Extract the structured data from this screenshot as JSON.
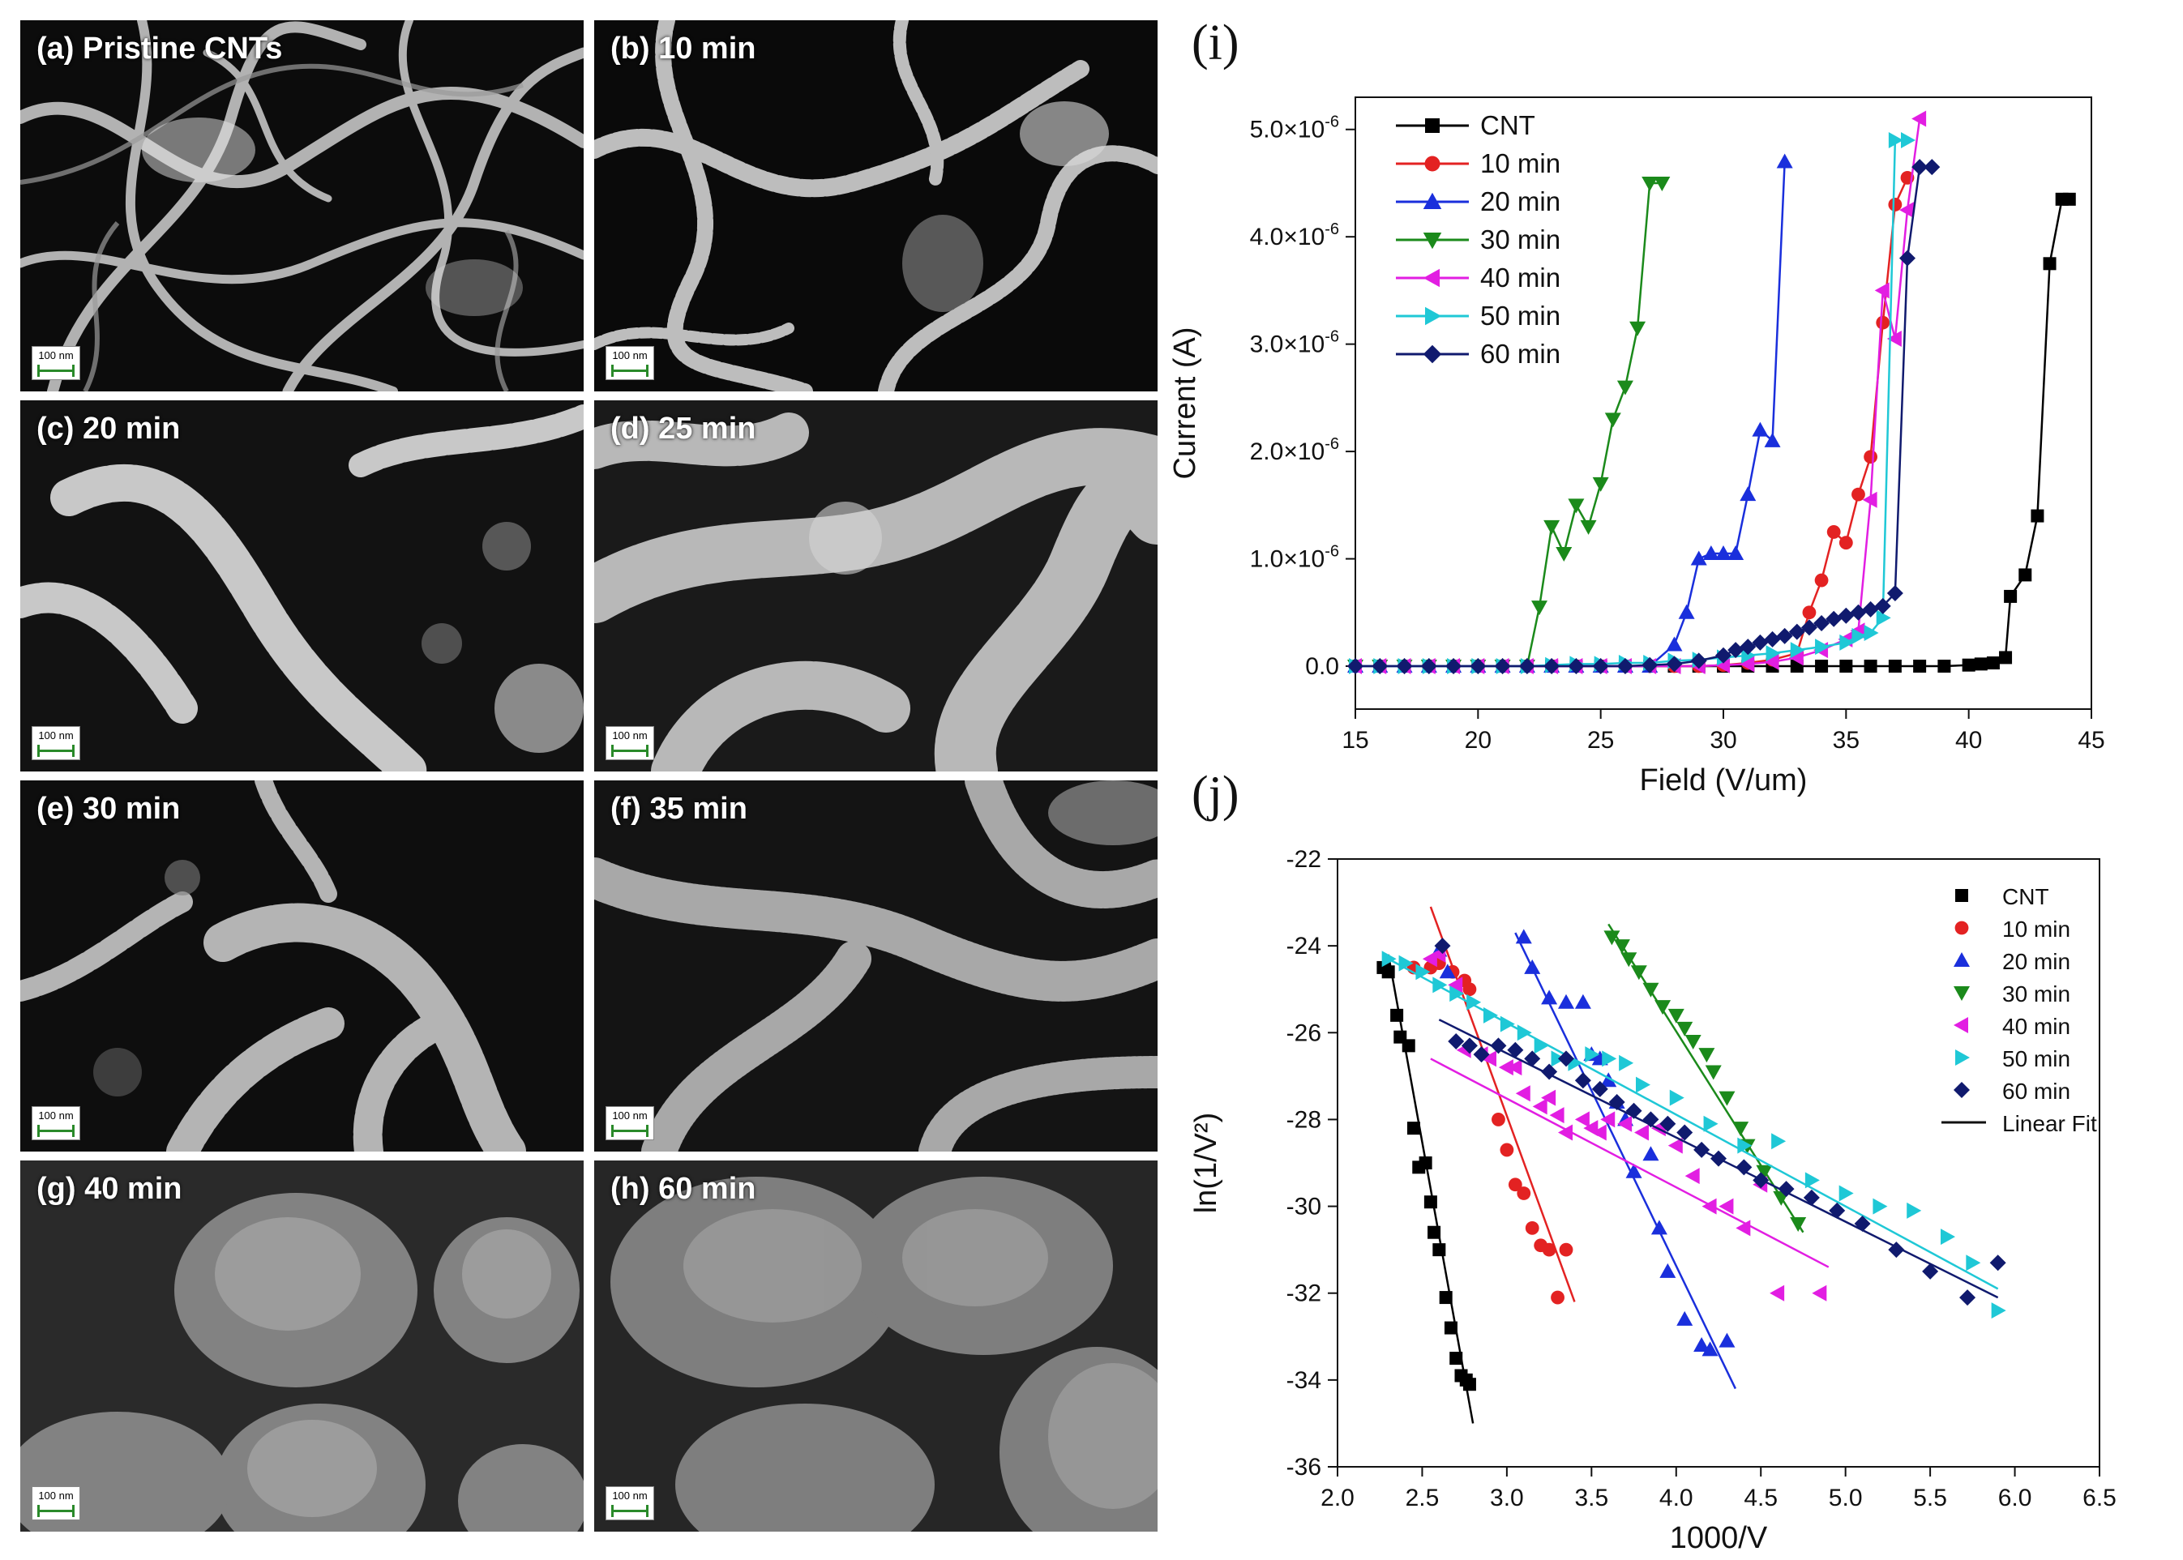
{
  "sem_panels": [
    {
      "label": "(a) Pristine CNTs",
      "scale": "100 nm"
    },
    {
      "label": "(b) 10 min",
      "scale": "100 nm"
    },
    {
      "label": "(c) 20 min",
      "scale": "100 nm"
    },
    {
      "label": "(d) 25 min",
      "scale": "100 nm"
    },
    {
      "label": "(e) 30 min",
      "scale": "100 nm"
    },
    {
      "label": "(f) 35 min",
      "scale": "100 nm"
    },
    {
      "label": "(g) 40 min",
      "scale": "100 nm"
    },
    {
      "label": "(h) 60 min",
      "scale": "100 nm"
    }
  ],
  "panel_i_letter": "(i)",
  "panel_j_letter": "(j)",
  "chart_data": [
    {
      "type": "line",
      "xlabel": "Field (V/um)",
      "ylabel": "Current (A)",
      "xlim": [
        15,
        45
      ],
      "ylim": [
        -4e-07,
        5.3e-06
      ],
      "xticks": [
        15,
        20,
        25,
        30,
        35,
        40,
        45
      ],
      "yticks": [
        0,
        1e-06,
        2e-06,
        3e-06,
        4e-06,
        5e-06
      ],
      "ytick_labels": [
        {
          "m": "0.0",
          "e": ""
        },
        {
          "m": "1.0×10",
          "e": "-6"
        },
        {
          "m": "2.0×10",
          "e": "-6"
        },
        {
          "m": "3.0×10",
          "e": "-6"
        },
        {
          "m": "4.0×10",
          "e": "-6"
        },
        {
          "m": "5.0×10",
          "e": "-6"
        }
      ],
      "legend_position": "top-left",
      "series": [
        {
          "name": "CNT",
          "color": "#000000",
          "marker": "square",
          "x": [
            15,
            16,
            17,
            18,
            19,
            20,
            21,
            22,
            23,
            24,
            25,
            26,
            27,
            28,
            29,
            30,
            31,
            32,
            33,
            34,
            35,
            36,
            37,
            38,
            39,
            40,
            40.5,
            41,
            41.5,
            41.7,
            42.3,
            42.8,
            43.3,
            43.8,
            44.1
          ],
          "y": [
            0,
            0,
            0,
            0,
            0,
            0,
            0,
            0,
            0,
            0,
            0,
            0,
            0,
            0,
            0,
            0,
            0,
            0,
            0,
            0,
            0,
            0,
            0,
            0,
            0,
            1e-08,
            2e-08,
            3e-08,
            8e-08,
            6.5e-07,
            8.5e-07,
            1.4e-06,
            3.75e-06,
            4.35e-06,
            4.35e-06
          ]
        },
        {
          "name": "10 min",
          "color": "#e32222",
          "marker": "circle",
          "x": [
            15,
            16,
            17,
            18,
            19,
            20,
            21,
            22,
            23,
            24,
            25,
            26,
            27,
            28,
            29,
            30,
            31,
            32,
            33,
            33.5,
            34,
            34.5,
            35,
            35.5,
            36,
            36.5,
            37,
            37.5
          ],
          "y": [
            0,
            0,
            0,
            0,
            0,
            0,
            0,
            0,
            0,
            0,
            0,
            0,
            0,
            0,
            0,
            1e-08,
            3e-08,
            6e-08,
            1.2e-07,
            5e-07,
            8e-07,
            1.25e-06,
            1.15e-06,
            1.6e-06,
            1.95e-06,
            3.2e-06,
            4.3e-06,
            4.55e-06
          ]
        },
        {
          "name": "20 min",
          "color": "#1a2fdc",
          "marker": "triangle-up",
          "x": [
            15,
            16,
            17,
            18,
            19,
            20,
            21,
            22,
            23,
            24,
            25,
            26,
            27,
            28,
            28.5,
            29,
            29.5,
            30,
            30.5,
            31,
            31.5,
            32,
            32.5
          ],
          "y": [
            0,
            0,
            0,
            0,
            0,
            0,
            0,
            0,
            0,
            0,
            0,
            0,
            0,
            2e-07,
            5e-07,
            1e-06,
            1.05e-06,
            1.05e-06,
            1.05e-06,
            1.6e-06,
            2.2e-06,
            2.1e-06,
            4.7e-06
          ]
        },
        {
          "name": "30 min",
          "color": "#1b8a1b",
          "marker": "triangle-down",
          "x": [
            15,
            16,
            17,
            18,
            19,
            20,
            21,
            22,
            22.5,
            23,
            23.5,
            24,
            24.5,
            25,
            25.5,
            26,
            26.5,
            27,
            27.5
          ],
          "y": [
            0,
            0,
            0,
            0,
            0,
            0,
            0,
            0,
            5.5e-07,
            1.3e-06,
            1.05e-06,
            1.5e-06,
            1.3e-06,
            1.7e-06,
            2.3e-06,
            2.6e-06,
            3.15e-06,
            4.5e-06,
            4.5e-06
          ]
        },
        {
          "name": "40 min",
          "color": "#e21ee2",
          "marker": "triangle-left",
          "x": [
            15,
            16,
            17,
            18,
            19,
            20,
            21,
            22,
            23,
            24,
            25,
            26,
            27,
            28,
            29,
            30,
            31,
            32,
            33,
            34,
            35,
            35.5,
            36,
            36.5,
            37,
            37.5,
            38
          ],
          "y": [
            0,
            0,
            0,
            0,
            0,
            0,
            0,
            0,
            0,
            0,
            0,
            0,
            0,
            0,
            0,
            1e-08,
            2e-08,
            4e-08,
            8e-08,
            1.5e-07,
            2.5e-07,
            3.3e-07,
            1.55e-06,
            3.5e-06,
            3.05e-06,
            4.25e-06,
            5.1e-06
          ]
        },
        {
          "name": "50 min",
          "color": "#1fc8d6",
          "marker": "triangle-right",
          "x": [
            15,
            16,
            17,
            18,
            19,
            20,
            21,
            22,
            23,
            24,
            25,
            26,
            27,
            28,
            29,
            30,
            31,
            32,
            33,
            34,
            35,
            35.5,
            36,
            36.5,
            37,
            37.5
          ],
          "y": [
            0,
            0,
            0,
            0,
            0,
            0,
            0,
            0,
            1e-08,
            2e-08,
            2e-08,
            3e-08,
            3e-08,
            5e-08,
            6e-08,
            8e-08,
            1e-07,
            1.2e-07,
            1.5e-07,
            1.8e-07,
            2.2e-07,
            2.8e-07,
            3.1e-07,
            4.5e-07,
            4.9e-06,
            4.9e-06
          ]
        },
        {
          "name": "60 min",
          "color": "#101a6e",
          "marker": "diamond",
          "x": [
            15,
            16,
            17,
            18,
            19,
            20,
            21,
            22,
            23,
            24,
            25,
            26,
            27,
            28,
            29,
            30,
            30.5,
            31,
            31.5,
            32,
            32.5,
            33,
            33.5,
            34,
            34.5,
            35,
            35.5,
            36,
            36.5,
            37,
            37.5,
            38,
            38.5
          ],
          "y": [
            0,
            0,
            0,
            0,
            0,
            0,
            0,
            0,
            0,
            0,
            0,
            0,
            1e-08,
            2e-08,
            5e-08,
            1e-07,
            1.5e-07,
            1.8e-07,
            2.2e-07,
            2.5e-07,
            2.8e-07,
            3.2e-07,
            3.6e-07,
            4e-07,
            4.4e-07,
            4.7e-07,
            5e-07,
            5.3e-07,
            5.6e-07,
            6.8e-07,
            3.8e-06,
            4.65e-06,
            4.65e-06
          ]
        }
      ]
    },
    {
      "type": "scatter",
      "xlabel": "1000/V",
      "ylabel": "ln(1/V²)",
      "xlim": [
        2.0,
        6.5
      ],
      "ylim": [
        -36,
        -22
      ],
      "xticks": [
        2.0,
        2.5,
        3.0,
        3.5,
        4.0,
        4.5,
        5.0,
        5.5,
        6.0,
        6.5
      ],
      "yticks": [
        -36,
        -34,
        -32,
        -30,
        -28,
        -26,
        -24,
        -22
      ],
      "legend_position": "top-right",
      "fit_name": "Linear Fit",
      "series": [
        {
          "name": "CNT",
          "color": "#000000",
          "marker": "square",
          "x": [
            2.27,
            2.3,
            2.35,
            2.37,
            2.42,
            2.45,
            2.48,
            2.52,
            2.55,
            2.57,
            2.6,
            2.64,
            2.67,
            2.7,
            2.73,
            2.76,
            2.78
          ],
          "y": [
            -24.5,
            -24.6,
            -25.6,
            -26.1,
            -26.3,
            -28.2,
            -29.1,
            -29.0,
            -29.9,
            -30.6,
            -31.0,
            -32.1,
            -32.8,
            -33.5,
            -33.9,
            -34.0,
            -34.1
          ],
          "fit": [
            [
              2.3,
              -24.2
            ],
            [
              2.8,
              -35.0
            ]
          ]
        },
        {
          "name": "10 min",
          "color": "#e32222",
          "marker": "circle",
          "x": [
            2.45,
            2.55,
            2.6,
            2.68,
            2.75,
            2.78,
            2.95,
            3.0,
            3.05,
            3.1,
            3.15,
            3.2,
            3.25,
            3.3,
            3.35
          ],
          "y": [
            -24.5,
            -24.5,
            -24.4,
            -24.6,
            -24.8,
            -25.0,
            -28.0,
            -28.7,
            -29.5,
            -29.7,
            -30.5,
            -30.9,
            -31.0,
            -32.1,
            -31.0
          ],
          "fit": [
            [
              2.55,
              -23.1
            ],
            [
              3.4,
              -32.2
            ]
          ]
        },
        {
          "name": "20 min",
          "color": "#1a2fdc",
          "marker": "triangle-up",
          "x": [
            2.6,
            2.65,
            3.1,
            3.15,
            3.25,
            3.35,
            3.45,
            3.5,
            3.55,
            3.6,
            3.65,
            3.7,
            3.75,
            3.85,
            3.9,
            3.95,
            4.05,
            4.15,
            4.2,
            4.3
          ],
          "y": [
            -24.1,
            -24.6,
            -23.8,
            -24.5,
            -25.2,
            -25.3,
            -25.3,
            -26.5,
            -26.6,
            -27.1,
            -27.6,
            -28.0,
            -29.2,
            -28.8,
            -30.5,
            -31.5,
            -32.6,
            -33.2,
            -33.3,
            -33.1
          ],
          "fit": [
            [
              3.05,
              -23.7
            ],
            [
              4.35,
              -34.2
            ]
          ]
        },
        {
          "name": "30 min",
          "color": "#1b8a1b",
          "marker": "triangle-down",
          "x": [
            3.62,
            3.68,
            3.72,
            3.78,
            3.85,
            3.92,
            4.0,
            4.05,
            4.1,
            4.18,
            4.22,
            4.3,
            4.38,
            4.42,
            4.52,
            4.62,
            4.72
          ],
          "y": [
            -23.8,
            -24.0,
            -24.3,
            -24.6,
            -25.0,
            -25.4,
            -25.6,
            -25.9,
            -26.2,
            -26.5,
            -26.9,
            -27.5,
            -28.2,
            -28.6,
            -29.2,
            -29.8,
            -30.4
          ],
          "fit": [
            [
              3.6,
              -23.5
            ],
            [
              4.75,
              -30.6
            ]
          ]
        },
        {
          "name": "40 min",
          "color": "#e21ee2",
          "marker": "triangle-left",
          "x": [
            2.55,
            2.6,
            2.7,
            2.75,
            2.85,
            2.9,
            3.0,
            3.05,
            3.1,
            3.2,
            3.25,
            3.3,
            3.35,
            3.45,
            3.5,
            3.55,
            3.6,
            3.7,
            3.8,
            3.9,
            4.0,
            4.1,
            4.2,
            4.3,
            4.4,
            4.5,
            4.6,
            4.85
          ],
          "y": [
            -24.3,
            -24.2,
            -24.9,
            -26.4,
            -26.5,
            -26.6,
            -26.8,
            -26.8,
            -27.4,
            -27.7,
            -27.5,
            -27.9,
            -28.3,
            -28.0,
            -28.2,
            -28.3,
            -28.0,
            -28.1,
            -28.3,
            -28.2,
            -28.6,
            -29.3,
            -30.0,
            -30.0,
            -30.5,
            -29.5,
            -32.0,
            -32.0
          ],
          "fit": [
            [
              2.55,
              -26.6
            ],
            [
              4.9,
              -31.4
            ]
          ]
        },
        {
          "name": "50 min",
          "color": "#1fc8d6",
          "marker": "triangle-right",
          "x": [
            2.3,
            2.4,
            2.5,
            2.6,
            2.7,
            2.8,
            2.9,
            3.0,
            3.1,
            3.2,
            3.3,
            3.4,
            3.5,
            3.6,
            3.7,
            3.8,
            4.0,
            4.2,
            4.4,
            4.6,
            4.8,
            5.0,
            5.2,
            5.4,
            5.6,
            5.75,
            5.9
          ],
          "y": [
            -24.3,
            -24.4,
            -24.6,
            -24.9,
            -25.1,
            -25.3,
            -25.6,
            -25.8,
            -26.0,
            -26.3,
            -26.6,
            -26.7,
            -26.5,
            -26.6,
            -26.7,
            -27.2,
            -27.5,
            -28.1,
            -28.6,
            -28.5,
            -29.4,
            -29.7,
            -30.0,
            -30.1,
            -30.7,
            -31.3,
            -32.4
          ],
          "fit": [
            [
              2.3,
              -24.3
            ],
            [
              5.9,
              -31.9
            ]
          ]
        },
        {
          "name": "60 min",
          "color": "#101a6e",
          "marker": "diamond",
          "x": [
            2.62,
            2.7,
            2.78,
            2.85,
            2.95,
            3.05,
            3.15,
            3.25,
            3.35,
            3.45,
            3.55,
            3.65,
            3.75,
            3.85,
            3.95,
            4.05,
            4.15,
            4.25,
            4.4,
            4.5,
            4.65,
            4.8,
            4.95,
            5.1,
            5.3,
            5.5,
            5.72,
            5.9
          ],
          "y": [
            -24.0,
            -26.2,
            -26.3,
            -26.5,
            -26.3,
            -26.4,
            -26.6,
            -26.9,
            -26.6,
            -27.1,
            -27.3,
            -27.6,
            -27.8,
            -28.0,
            -28.1,
            -28.3,
            -28.7,
            -28.9,
            -29.1,
            -29.4,
            -29.6,
            -29.8,
            -30.1,
            -30.4,
            -31.0,
            -31.5,
            -32.1,
            -31.3
          ],
          "fit": [
            [
              2.6,
              -25.7
            ],
            [
              5.9,
              -32.1
            ]
          ]
        }
      ]
    }
  ]
}
